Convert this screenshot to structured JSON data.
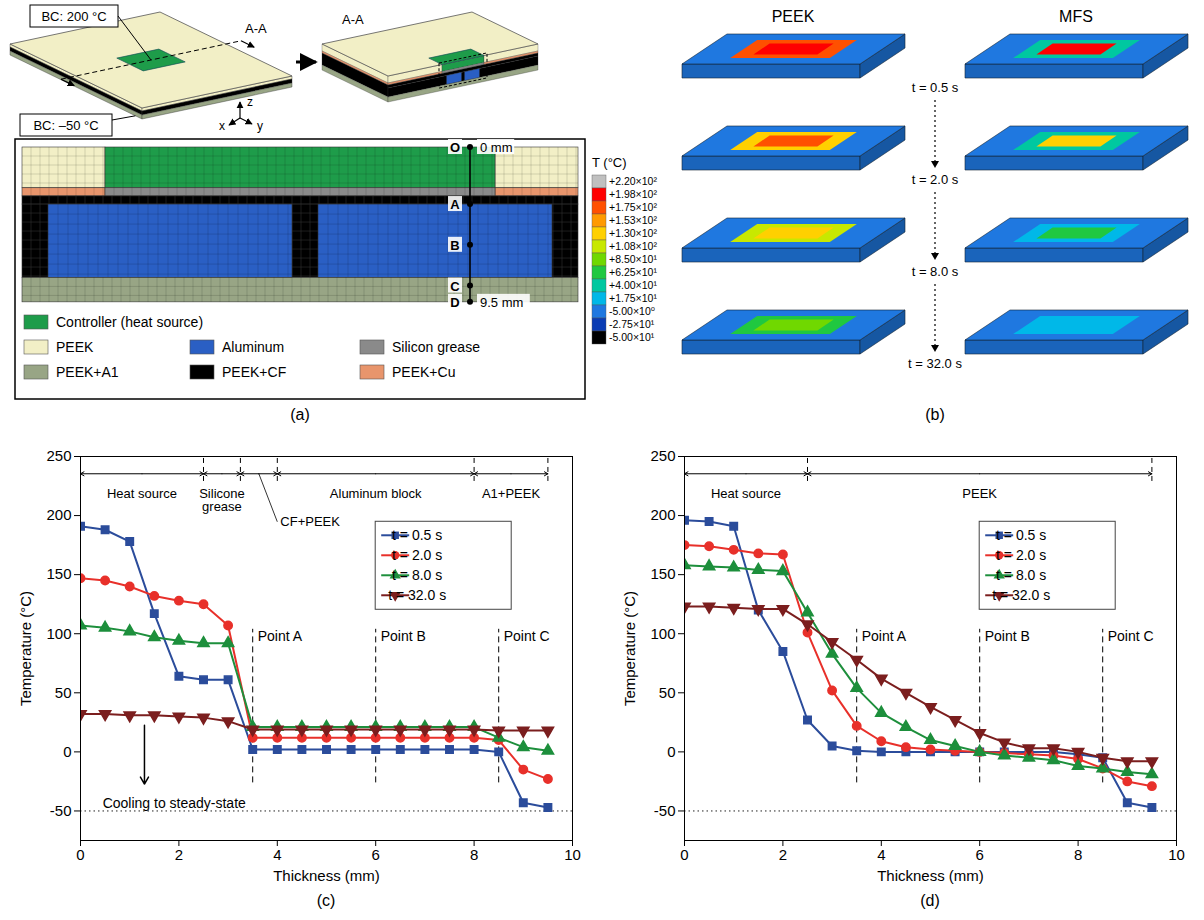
{
  "panel_a": {
    "label": "(a)",
    "boundary_conditions": [
      "BC: 200 °C",
      "BC: –50 °C"
    ],
    "section": "A-A",
    "axes": [
      "x",
      "y",
      "z"
    ],
    "section_points": [
      {
        "name": "O",
        "depth": 0,
        "label": "0 mm"
      },
      {
        "name": "A",
        "depth": 3.5
      },
      {
        "name": "B",
        "depth": 6
      },
      {
        "name": "C",
        "depth": 8.5
      },
      {
        "name": "D",
        "depth": 9.5,
        "label": "9.5 mm"
      }
    ],
    "legend": [
      {
        "name": "Controller (heat source)",
        "color": "#1e9c4a"
      },
      {
        "name": "PEEK",
        "color": "#f2efc6"
      },
      {
        "name": "Aluminum",
        "color": "#2a5fc4"
      },
      {
        "name": "Silicon grease",
        "color": "#8a8a8a"
      },
      {
        "name": "PEEK+A1",
        "color": "#98a585"
      },
      {
        "name": "PEEK+CF",
        "color": "#000000"
      },
      {
        "name": "PEEK+Cu",
        "color": "#e8956c"
      }
    ]
  },
  "colorbar": {
    "title": "T (°C)",
    "ticks": [
      {
        "value": 220,
        "label": "+2.20×10²"
      },
      {
        "value": 198,
        "label": "+1.98×10²"
      },
      {
        "value": 175,
        "label": "+1.75×10²"
      },
      {
        "value": 153,
        "label": "+1.53×10²"
      },
      {
        "value": 130,
        "label": "+1.30×10²"
      },
      {
        "value": 108,
        "label": "+1.08×10²"
      },
      {
        "value": 85,
        "label": "+8.50×10¹"
      },
      {
        "value": 62.5,
        "label": "+6.25×10¹"
      },
      {
        "value": 40,
        "label": "+4.00×10¹"
      },
      {
        "value": 17.5,
        "label": "+1.75×10¹"
      },
      {
        "value": -5,
        "label": "-5.00×10⁰"
      },
      {
        "value": -27.5,
        "label": "-2.75×10¹"
      },
      {
        "value": -50,
        "label": "-5.00×10¹"
      }
    ],
    "colors": [
      "#c0c0c0",
      "#ff0000",
      "#ff5000",
      "#ff9a00",
      "#ffd000",
      "#c8e800",
      "#70d800",
      "#20c840",
      "#00c8a0",
      "#00b8e8",
      "#1f78e0",
      "#0a3cb4",
      "#000000"
    ]
  },
  "panel_b": {
    "label": "(b)",
    "columns": [
      "PEEK",
      "MFS"
    ],
    "background_T": 10,
    "frames": [
      {
        "time": "t = 0.5 s",
        "source_T": [
          198,
          198
        ],
        "halo_T": [
          175,
          40
        ]
      },
      {
        "time": "t = 2.0 s",
        "source_T": [
          175,
          150
        ],
        "halo_T": [
          150,
          40
        ]
      },
      {
        "time": "t = 8.0 s",
        "source_T": [
          140,
          80
        ],
        "halo_T": [
          110,
          30
        ]
      },
      {
        "time": "t = 32.0 s",
        "source_T": [
          90,
          30
        ],
        "halo_T": [
          62.5,
          17.5
        ]
      }
    ]
  },
  "chart_data": [
    {
      "type": "line",
      "label": "(c)",
      "x_label": "Thickness (mm)",
      "y_label": "Temperature (°C)",
      "xlim": [
        0,
        10
      ],
      "xticks": [
        0,
        2,
        4,
        6,
        8,
        10
      ],
      "ylim": [
        -75,
        250
      ],
      "yticks": [
        -50,
        0,
        50,
        100,
        150,
        200,
        250
      ],
      "legend": "upper right",
      "x": [
        0,
        0.5,
        1,
        1.5,
        2,
        2.5,
        3,
        3.5,
        4,
        4.5,
        5,
        5.5,
        6,
        6.5,
        7,
        7.5,
        8,
        8.5,
        9,
        9.5
      ],
      "series": [
        {
          "name": "t = 0.5 s",
          "color": "#2b4c9b",
          "marker": "square",
          "values": [
            191,
            188,
            178,
            117,
            64,
            61,
            61,
            2,
            2,
            2,
            2,
            2,
            2,
            2,
            2,
            2,
            2,
            0,
            -43,
            -47
          ]
        },
        {
          "name": "t = 2.0 s",
          "color": "#e8302a",
          "marker": "circle",
          "values": [
            147,
            145,
            140,
            132,
            128,
            125,
            107,
            12,
            12,
            12,
            12,
            12,
            12,
            12,
            12,
            12,
            12,
            10,
            -15,
            -23
          ]
        },
        {
          "name": "t = 8.0 s",
          "color": "#1d8f3c",
          "marker": "triangle",
          "values": [
            107,
            105,
            102,
            97,
            94,
            92,
            92,
            21,
            21,
            21,
            21,
            21,
            21,
            21,
            21,
            21,
            21,
            12,
            4,
            1
          ]
        },
        {
          "name": "t = 32.0 s",
          "color": "#7b1e1e",
          "marker": "triangle-down",
          "values": [
            32,
            32,
            31,
            31,
            30,
            29,
            26,
            19,
            19,
            19,
            19,
            19,
            19,
            19,
            19,
            19,
            19,
            18,
            18,
            18
          ]
        }
      ],
      "regions": [
        {
          "label": "Heat source",
          "x": [
            0,
            2.5
          ]
        },
        {
          "label": "Silicone grease",
          "x": [
            2.5,
            3.25
          ]
        },
        {
          "label": "CF+PEEK",
          "x": [
            3.25,
            4
          ]
        },
        {
          "label": "Aluminum block",
          "x": [
            4,
            8
          ]
        },
        {
          "label": "A1+PEEK",
          "x": [
            8,
            9.5
          ]
        }
      ],
      "points": [
        {
          "label": "Point A",
          "x": 3.5
        },
        {
          "label": "Point B",
          "x": 6
        },
        {
          "label": "Point C",
          "x": 8.5
        }
      ],
      "steady_state": -50,
      "annotation": {
        "text": "Cooling to steady-state"
      }
    },
    {
      "type": "line",
      "label": "(d)",
      "x_label": "Thickness (mm)",
      "y_label": "Temperature (°C)",
      "xlim": [
        0,
        10
      ],
      "xticks": [
        0,
        2,
        4,
        6,
        8,
        10
      ],
      "ylim": [
        -75,
        250
      ],
      "yticks": [
        -50,
        0,
        50,
        100,
        150,
        200,
        250
      ],
      "legend": "upper right",
      "x": [
        0,
        0.5,
        1,
        1.5,
        2,
        2.5,
        3,
        3.5,
        4,
        4.5,
        5,
        5.5,
        6,
        6.5,
        7,
        7.5,
        8,
        8.5,
        9,
        9.5
      ],
      "series": [
        {
          "name": "t = 0.5 s",
          "color": "#2b4c9b",
          "marker": "square",
          "values": [
            196,
            195,
            191,
            120,
            85,
            27,
            5,
            1,
            0,
            0,
            0,
            0,
            0,
            0,
            0,
            0,
            -2,
            -5,
            -43,
            -47
          ]
        },
        {
          "name": "t = 2.0 s",
          "color": "#e8302a",
          "marker": "circle",
          "values": [
            175,
            174,
            171,
            168,
            167,
            101,
            52,
            22,
            9,
            4,
            2,
            1,
            0,
            -1,
            -2,
            -3,
            -6,
            -14,
            -25,
            -29
          ]
        },
        {
          "name": "t = 8.0 s",
          "color": "#1d8f3c",
          "marker": "triangle",
          "values": [
            158,
            157,
            156,
            154,
            153,
            118,
            83,
            54,
            33,
            21,
            10,
            5,
            0,
            -3,
            -5,
            -7,
            -12,
            -14,
            -17,
            -19
          ]
        },
        {
          "name": "t = 32.0 s",
          "color": "#7b1e1e",
          "marker": "triangle-down",
          "values": [
            123,
            123,
            122,
            121,
            121,
            108,
            93,
            78,
            62,
            50,
            38,
            27,
            16,
            8,
            3,
            3,
            0,
            -5,
            -8,
            -8
          ]
        }
      ],
      "regions": [
        {
          "label": "Heat source",
          "x": [
            0,
            2.5
          ]
        },
        {
          "label": "PEEK",
          "x": [
            2.5,
            9.5
          ]
        }
      ],
      "points": [
        {
          "label": "Point A",
          "x": 3.5
        },
        {
          "label": "Point B",
          "x": 6
        },
        {
          "label": "Point C",
          "x": 8.5
        }
      ],
      "steady_state": -50
    }
  ]
}
